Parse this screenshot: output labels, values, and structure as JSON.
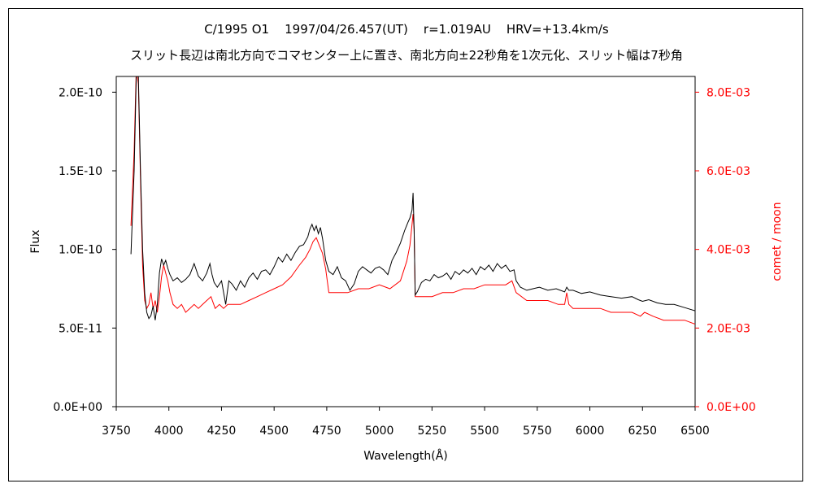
{
  "chart_data": {
    "type": "line",
    "title": "C/1995 O1    1997/04/26.457(UT)    r=1.019AU    HRV=+13.4km/s",
    "subtitle": "スリット長辺は南北方向でコマセンター上に置き、南北方向±22秒角を1次元化、スリット幅は7秒角",
    "xlabel": "Wavelength(Å)",
    "ylabel": "Flux",
    "y2label": "comet / moon",
    "xlim": [
      3750,
      6500
    ],
    "ylim": [
      0,
      2.1e-10
    ],
    "y2lim": [
      0,
      0.0084
    ],
    "xticks": [
      "3750",
      "4000",
      "4250",
      "4500",
      "4750",
      "5000",
      "5250",
      "5500",
      "5750",
      "6000",
      "6250",
      "6500"
    ],
    "yticks": [
      "0.0E+00",
      "5.0E-11",
      "1.0E-10",
      "1.5E-10",
      "2.0E-10"
    ],
    "y2ticks": [
      "0.0E+00",
      "2.0E-03",
      "4.0E-03",
      "6.0E-03",
      "8.0E-03"
    ],
    "grid": false,
    "series": [
      {
        "name": "Flux",
        "axis": "left",
        "color": "#000000",
        "x": [
          3820,
          3835,
          3845,
          3855,
          3865,
          3875,
          3885,
          3895,
          3905,
          3915,
          3925,
          3935,
          3945,
          3955,
          3965,
          3975,
          3985,
          3995,
          4005,
          4020,
          4040,
          4060,
          4080,
          4100,
          4120,
          4140,
          4160,
          4180,
          4195,
          4205,
          4215,
          4230,
          4250,
          4270,
          4285,
          4300,
          4320,
          4340,
          4360,
          4380,
          4400,
          4420,
          4440,
          4460,
          4480,
          4500,
          4520,
          4540,
          4560,
          4580,
          4600,
          4620,
          4640,
          4660,
          4670,
          4680,
          4690,
          4700,
          4710,
          4720,
          4730,
          4745,
          4760,
          4780,
          4800,
          4820,
          4840,
          4860,
          4880,
          4900,
          4920,
          4940,
          4960,
          4980,
          5000,
          5020,
          5040,
          5060,
          5080,
          5100,
          5120,
          5135,
          5145,
          5155,
          5160,
          5165,
          5170,
          5180,
          5200,
          5220,
          5240,
          5260,
          5280,
          5300,
          5320,
          5340,
          5360,
          5380,
          5400,
          5420,
          5440,
          5460,
          5480,
          5500,
          5520,
          5540,
          5560,
          5580,
          5600,
          5620,
          5640,
          5650,
          5670,
          5700,
          5730,
          5760,
          5800,
          5840,
          5880,
          5890,
          5900,
          5920,
          5960,
          6000,
          6050,
          6100,
          6150,
          6200,
          6230,
          6250,
          6280,
          6320,
          6360,
          6400,
          6450,
          6500
        ],
        "values": [
          9.7e-11,
          1.5e-10,
          2.1e-10,
          2.1e-10,
          1.5e-10,
          1e-10,
          7.2e-11,
          6e-11,
          5.6e-11,
          5.8e-11,
          6.4e-11,
          5.5e-11,
          6.5e-11,
          8.5e-11,
          9.4e-11,
          9e-11,
          9.3e-11,
          8.8e-11,
          8.4e-11,
          8e-11,
          8.2e-11,
          7.9e-11,
          8.1e-11,
          8.4e-11,
          9.1e-11,
          8.3e-11,
          8e-11,
          8.5e-11,
          9.1e-11,
          8.4e-11,
          7.9e-11,
          7.6e-11,
          8e-11,
          6.5e-11,
          8e-11,
          7.8e-11,
          7.4e-11,
          8e-11,
          7.6e-11,
          8.2e-11,
          8.5e-11,
          8.1e-11,
          8.6e-11,
          8.7e-11,
          8.4e-11,
          8.9e-11,
          9.5e-11,
          9.2e-11,
          9.7e-11,
          9.3e-11,
          9.8e-11,
          1.02e-10,
          1.03e-10,
          1.08e-10,
          1.13e-10,
          1.16e-10,
          1.12e-10,
          1.15e-10,
          1.1e-10,
          1.14e-10,
          1.07e-10,
          9.3e-11,
          8.6e-11,
          8.4e-11,
          8.9e-11,
          8.2e-11,
          8e-11,
          7.4e-11,
          7.8e-11,
          8.6e-11,
          8.9e-11,
          8.7e-11,
          8.5e-11,
          8.8e-11,
          8.9e-11,
          8.7e-11,
          8.4e-11,
          9.3e-11,
          9.8e-11,
          1.04e-10,
          1.12e-10,
          1.17e-10,
          1.2e-10,
          1.25e-10,
          1.36e-10,
          1.12e-10,
          7.1e-11,
          7.3e-11,
          7.9e-11,
          8.1e-11,
          8e-11,
          8.4e-11,
          8.2e-11,
          8.3e-11,
          8.5e-11,
          8.1e-11,
          8.6e-11,
          8.4e-11,
          8.7e-11,
          8.5e-11,
          8.8e-11,
          8.4e-11,
          8.9e-11,
          8.7e-11,
          9e-11,
          8.6e-11,
          9.1e-11,
          8.8e-11,
          9e-11,
          8.6e-11,
          8.7e-11,
          8e-11,
          7.6e-11,
          7.4e-11,
          7.5e-11,
          7.6e-11,
          7.4e-11,
          7.5e-11,
          7.3e-11,
          7.6e-11,
          7.4e-11,
          7.4e-11,
          7.2e-11,
          7.3e-11,
          7.1e-11,
          7e-11,
          6.9e-11,
          7e-11,
          6.8e-11,
          6.7e-11,
          6.8e-11,
          6.6e-11,
          6.5e-11,
          6.5e-11,
          6.3e-11,
          6.1e-11
        ]
      },
      {
        "name": "comet / moon",
        "axis": "right",
        "color": "#ff0000",
        "x": [
          3820,
          3835,
          3845,
          3855,
          3865,
          3875,
          3885,
          3895,
          3905,
          3915,
          3925,
          3935,
          3945,
          3955,
          3965,
          3975,
          3985,
          3995,
          4005,
          4020,
          4040,
          4060,
          4080,
          4100,
          4120,
          4140,
          4160,
          4180,
          4200,
          4220,
          4240,
          4260,
          4280,
          4300,
          4340,
          4380,
          4420,
          4460,
          4500,
          4540,
          4580,
          4620,
          4650,
          4670,
          4685,
          4700,
          4715,
          4730,
          4745,
          4760,
          4800,
          4850,
          4900,
          4950,
          5000,
          5050,
          5100,
          5130,
          5145,
          5160,
          5165,
          5170,
          5180,
          5200,
          5250,
          5300,
          5350,
          5400,
          5450,
          5500,
          5550,
          5600,
          5630,
          5650,
          5700,
          5750,
          5800,
          5850,
          5880,
          5890,
          5900,
          5920,
          5960,
          6000,
          6050,
          6100,
          6150,
          6200,
          6240,
          6260,
          6300,
          6350,
          6400,
          6450,
          6500
        ],
        "values": [
          0.0046,
          0.0065,
          0.0086,
          0.0082,
          0.0058,
          0.0036,
          0.0027,
          0.0025,
          0.0026,
          0.0029,
          0.0025,
          0.0027,
          0.0024,
          0.0028,
          0.0033,
          0.0036,
          0.0034,
          0.0032,
          0.0029,
          0.0026,
          0.0025,
          0.0026,
          0.0024,
          0.0025,
          0.0026,
          0.0025,
          0.0026,
          0.0027,
          0.0028,
          0.0025,
          0.0026,
          0.0025,
          0.0026,
          0.0026,
          0.0026,
          0.0027,
          0.0028,
          0.0029,
          0.003,
          0.0031,
          0.0033,
          0.0036,
          0.0038,
          0.004,
          0.0042,
          0.0043,
          0.0041,
          0.0039,
          0.0035,
          0.0029,
          0.0029,
          0.0029,
          0.003,
          0.003,
          0.0031,
          0.003,
          0.0032,
          0.0037,
          0.0041,
          0.0049,
          0.0045,
          0.0028,
          0.0028,
          0.0028,
          0.0028,
          0.0029,
          0.0029,
          0.003,
          0.003,
          0.0031,
          0.0031,
          0.0031,
          0.0032,
          0.0029,
          0.0027,
          0.0027,
          0.0027,
          0.0026,
          0.0026,
          0.0029,
          0.0026,
          0.0025,
          0.0025,
          0.0025,
          0.0025,
          0.0024,
          0.0024,
          0.0024,
          0.0023,
          0.0024,
          0.0023,
          0.0022,
          0.0022,
          0.0022,
          0.0021
        ]
      }
    ]
  }
}
